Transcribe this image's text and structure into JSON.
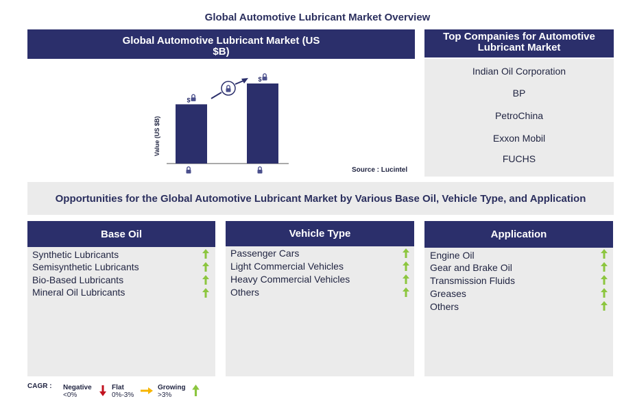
{
  "page_title": "Global Automotive Lubricant Market Overview",
  "chart_data": {
    "type": "bar",
    "title": "Global Automotive Lubricant Market (US $B)",
    "ylabel": "Value (US $B)",
    "categories": [
      "",
      ""
    ],
    "values": [
      null,
      null
    ],
    "value_labels": [
      "$",
      "$"
    ],
    "relative_heights": [
      0.74,
      1.0
    ],
    "source": "Source : Lucintel",
    "bar_color": "#2b2f6b"
  },
  "companies": {
    "title": "Top Companies for Automotive Lubricant Market",
    "items": [
      "Indian Oil Corporation",
      "BP",
      "PetroChina",
      "Exxon Mobil",
      "FUCHS"
    ]
  },
  "opportunities_title": "Opportunities for the Global Automotive Lubricant Market by Various Base Oil, Vehicle Type, and Application",
  "columns": [
    {
      "title": "Base Oil",
      "items": [
        "Synthetic Lubricants",
        "Semisynthetic Lubricants",
        "Bio-Based Lubricants",
        "Mineral Oil Lubricants"
      ],
      "trend": [
        "growing",
        "growing",
        "growing",
        "growing"
      ]
    },
    {
      "title": "Vehicle Type",
      "items": [
        "Passenger Cars",
        "Light Commercial Vehicles",
        "Heavy Commercial Vehicles",
        "Others"
      ],
      "trend": [
        "growing",
        "growing",
        "growing",
        "growing"
      ]
    },
    {
      "title": "Application",
      "items": [
        "Engine Oil",
        "Gear and Brake Oil",
        "Transmission Fluids",
        "Greases",
        "Others"
      ],
      "trend": [
        "growing",
        "growing",
        "growing",
        "growing",
        "growing"
      ]
    }
  ],
  "legend": {
    "label": "CAGR :",
    "negative": {
      "name": "Negative",
      "range": "<0%"
    },
    "flat": {
      "name": "Flat",
      "range": "0%-3%"
    },
    "growing": {
      "name": "Growing",
      "range": ">3%"
    }
  },
  "colors": {
    "navy": "#2b2f6b",
    "panel": "#ebebeb",
    "growing": "#8cc63f",
    "flat": "#f7b500",
    "negative": "#c1121f"
  }
}
